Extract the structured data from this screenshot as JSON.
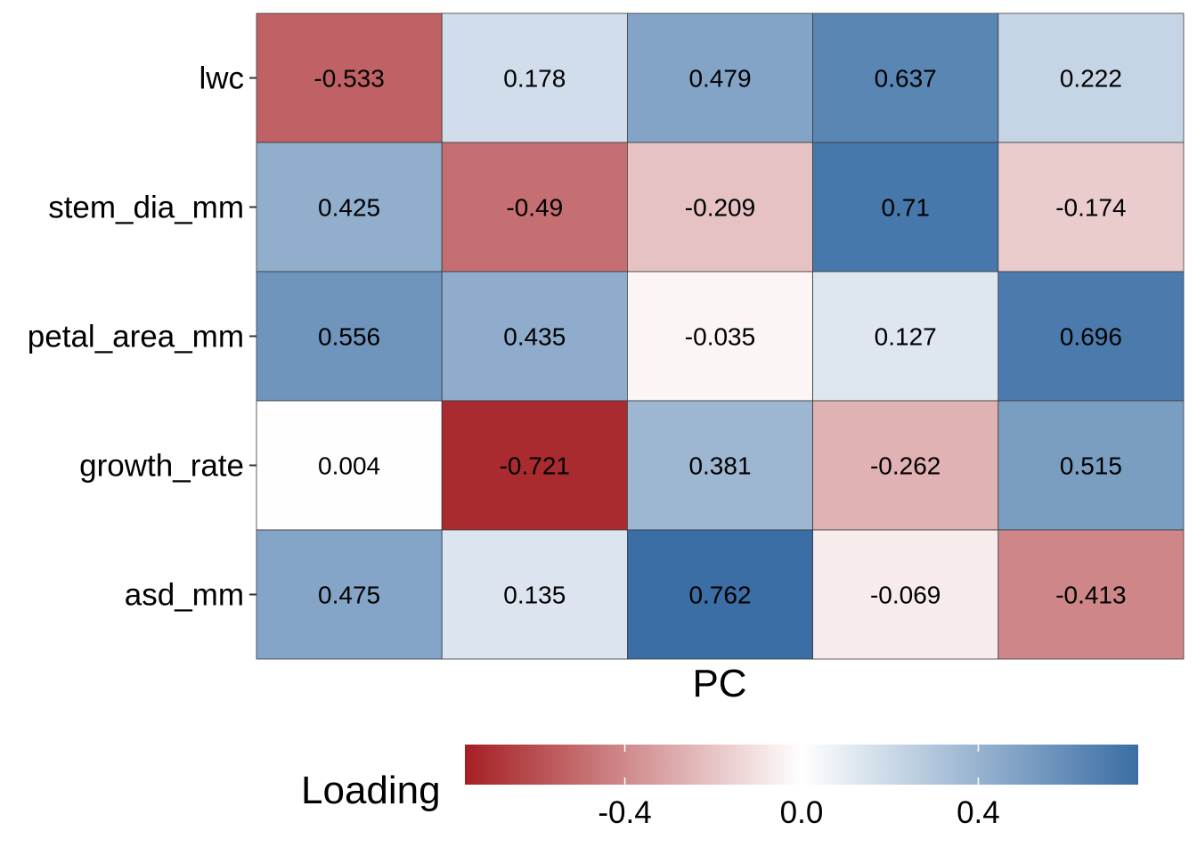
{
  "chart_data": {
    "type": "heatmap",
    "title": "",
    "xlabel": "PC",
    "ylabel": "",
    "x_categories": [
      "",
      "",
      "",
      "",
      ""
    ],
    "y_categories": [
      "lwc",
      "stem_dia_mm",
      "petal_area_mm",
      "growth_rate",
      "asd_mm"
    ],
    "values": [
      [
        -0.533,
        0.178,
        0.479,
        0.637,
        0.222
      ],
      [
        0.425,
        -0.49,
        -0.209,
        0.71,
        -0.174
      ],
      [
        0.556,
        0.435,
        -0.035,
        0.127,
        0.696
      ],
      [
        0.004,
        -0.721,
        0.381,
        -0.262,
        0.515
      ],
      [
        0.475,
        0.135,
        0.762,
        -0.069,
        -0.413
      ]
    ],
    "cell_labels": [
      [
        "-0.533",
        "0.178",
        "0.479",
        "0.637",
        "0.222"
      ],
      [
        "0.425",
        "-0.49",
        "-0.209",
        "0.71",
        "-0.174"
      ],
      [
        "0.556",
        "0.435",
        "-0.035",
        "0.127",
        "0.696"
      ],
      [
        "0.004",
        "-0.721",
        "0.381",
        "-0.262",
        "0.515"
      ],
      [
        "0.475",
        "0.135",
        "0.762",
        "-0.069",
        "-0.413"
      ]
    ],
    "color_scale": {
      "low": "#a51f23",
      "mid": "#ffffff",
      "high": "#3a6ea5",
      "limits": [
        -0.762,
        0.762
      ]
    },
    "legend": {
      "title": "Loading",
      "position": "bottom",
      "ticks": [
        -0.4,
        0.0,
        0.4
      ],
      "tick_labels": [
        "-0.4",
        "0.0",
        "0.4"
      ]
    },
    "grid": false
  }
}
